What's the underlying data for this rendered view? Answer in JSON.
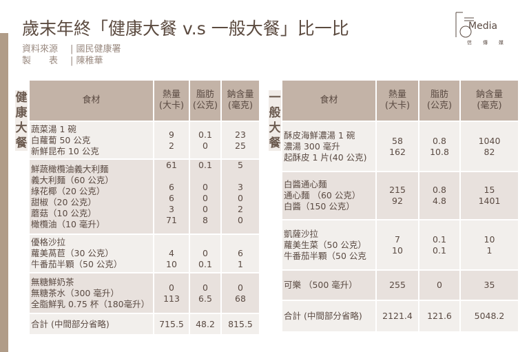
{
  "title": "歲末年終「健康大餐 v.s 一般大餐」比一比",
  "source": {
    "label1": "資料來源",
    "value1": "國民健康署",
    "label2": "製　　表",
    "value2": "陳稚華"
  },
  "logo": {
    "text": "Media",
    "cn": "信傳媒"
  },
  "headers": [
    "食材",
    "熱量\n(大卡)",
    "脂肪\n(公克)",
    "鈉含量\n(毫克)"
  ],
  "healthy": {
    "label": "健康大餐",
    "rows": [
      {
        "items": [
          "蔬菜湯 1 碗",
          "白蘿蔔 50 公克",
          "新鮮昆布 10 公克"
        ],
        "kcal": [
          "9",
          "2"
        ],
        "fat": [
          "0.1",
          "0"
        ],
        "na": [
          "23",
          "25"
        ]
      },
      {
        "items": [
          "鮮蔬橄欖油義大利麵",
          "義大利麵（60 公克）",
          "綠花椰（20 公克）",
          "甜椒（20 公克）",
          "蘑菇（10 公克）",
          "橄欖油（10 毫升）"
        ],
        "kcal": [
          "61",
          "",
          "6",
          "6",
          "3",
          "71"
        ],
        "fat": [
          "0.1",
          "",
          "0",
          "0",
          "0",
          "8"
        ],
        "na": [
          "5",
          "",
          "3",
          "0",
          "2",
          "0"
        ]
      },
      {
        "items": [
          "優格沙拉",
          "蘿美萵苣（30 公克）",
          "牛番茄半顆（50 公克）"
        ],
        "kcal": [
          "",
          "4",
          "10"
        ],
        "fat": [
          "",
          "0",
          "0.1"
        ],
        "na": [
          "",
          "6",
          "1"
        ]
      },
      {
        "items": [
          "無糖鮮奶茶",
          "無糖茶水（300 毫升）",
          "全脂鮮乳 0.75 杯（180毫升）"
        ],
        "kcal": [
          "0",
          "113"
        ],
        "fat": [
          "0",
          "6.5"
        ],
        "na": [
          "0",
          "68"
        ]
      },
      {
        "items": [
          "合計 (中間部分省略)"
        ],
        "kcal": [
          "715.5"
        ],
        "fat": [
          "48.2"
        ],
        "na": [
          "815.5"
        ]
      }
    ]
  },
  "regular": {
    "label": "一般大餐",
    "rows": [
      {
        "items": [
          "酥皮海鮮濃湯 1 碗",
          "濃湯 300 毫升",
          "起酥皮 1 片(40 公克)"
        ],
        "kcal": [
          "58",
          "162"
        ],
        "fat": [
          "0.8",
          "10.8"
        ],
        "na": [
          "1040",
          "82"
        ]
      },
      {
        "items": [
          "白醬通心麵",
          "通心麵 （60 公克）",
          "白醬（150 公克）"
        ],
        "kcal": [
          "215",
          "92"
        ],
        "fat": [
          "0.8",
          "4.8"
        ],
        "na": [
          "15",
          "1401"
        ]
      },
      {
        "items": [
          "凱薩沙拉",
          "蘿美生菜（50 公克）",
          "牛番茄半顆（50 公克"
        ],
        "kcal": [
          "7",
          "10"
        ],
        "fat": [
          "0.1",
          "0.1"
        ],
        "na": [
          "10",
          "1"
        ]
      },
      {
        "items": [
          "可樂 （500 毫升）"
        ],
        "kcal": [
          "255"
        ],
        "fat": [
          "0"
        ],
        "na": [
          "35"
        ]
      },
      {
        "items": [
          "合計 (中間部分省略)"
        ],
        "kcal": [
          "2121.4"
        ],
        "fat": [
          "121.6"
        ],
        "na": [
          "5048.2"
        ]
      }
    ]
  }
}
